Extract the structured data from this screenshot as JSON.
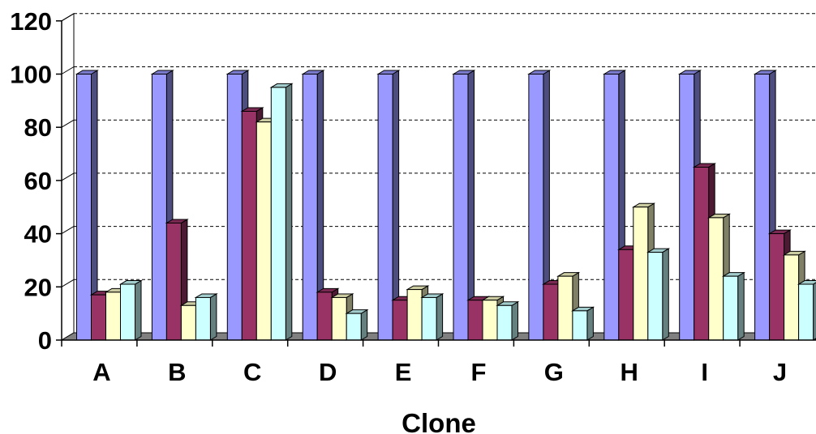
{
  "chart_data": {
    "type": "bar",
    "xlabel": "Clone",
    "ylabel": "",
    "ylim": [
      0,
      120
    ],
    "yticks": [
      0,
      20,
      40,
      60,
      80,
      100,
      120
    ],
    "grid": true,
    "legend": "none",
    "categories": [
      "A",
      "B",
      "C",
      "D",
      "E",
      "F",
      "G",
      "H",
      "I",
      "J"
    ],
    "series": [
      {
        "color": "#9999ff",
        "values": [
          100,
          100,
          100,
          100,
          100,
          100,
          100,
          100,
          100,
          100
        ]
      },
      {
        "color": "#993366",
        "values": [
          17,
          44,
          86,
          18,
          15,
          15,
          21,
          34,
          65,
          40
        ]
      },
      {
        "color": "#ffffcc",
        "values": [
          18,
          13,
          82,
          16,
          19,
          15,
          24,
          50,
          46,
          32
        ]
      },
      {
        "color": "#ccffff",
        "values": [
          21,
          16,
          95,
          10,
          16,
          13,
          11,
          33,
          24,
          21
        ]
      }
    ]
  }
}
